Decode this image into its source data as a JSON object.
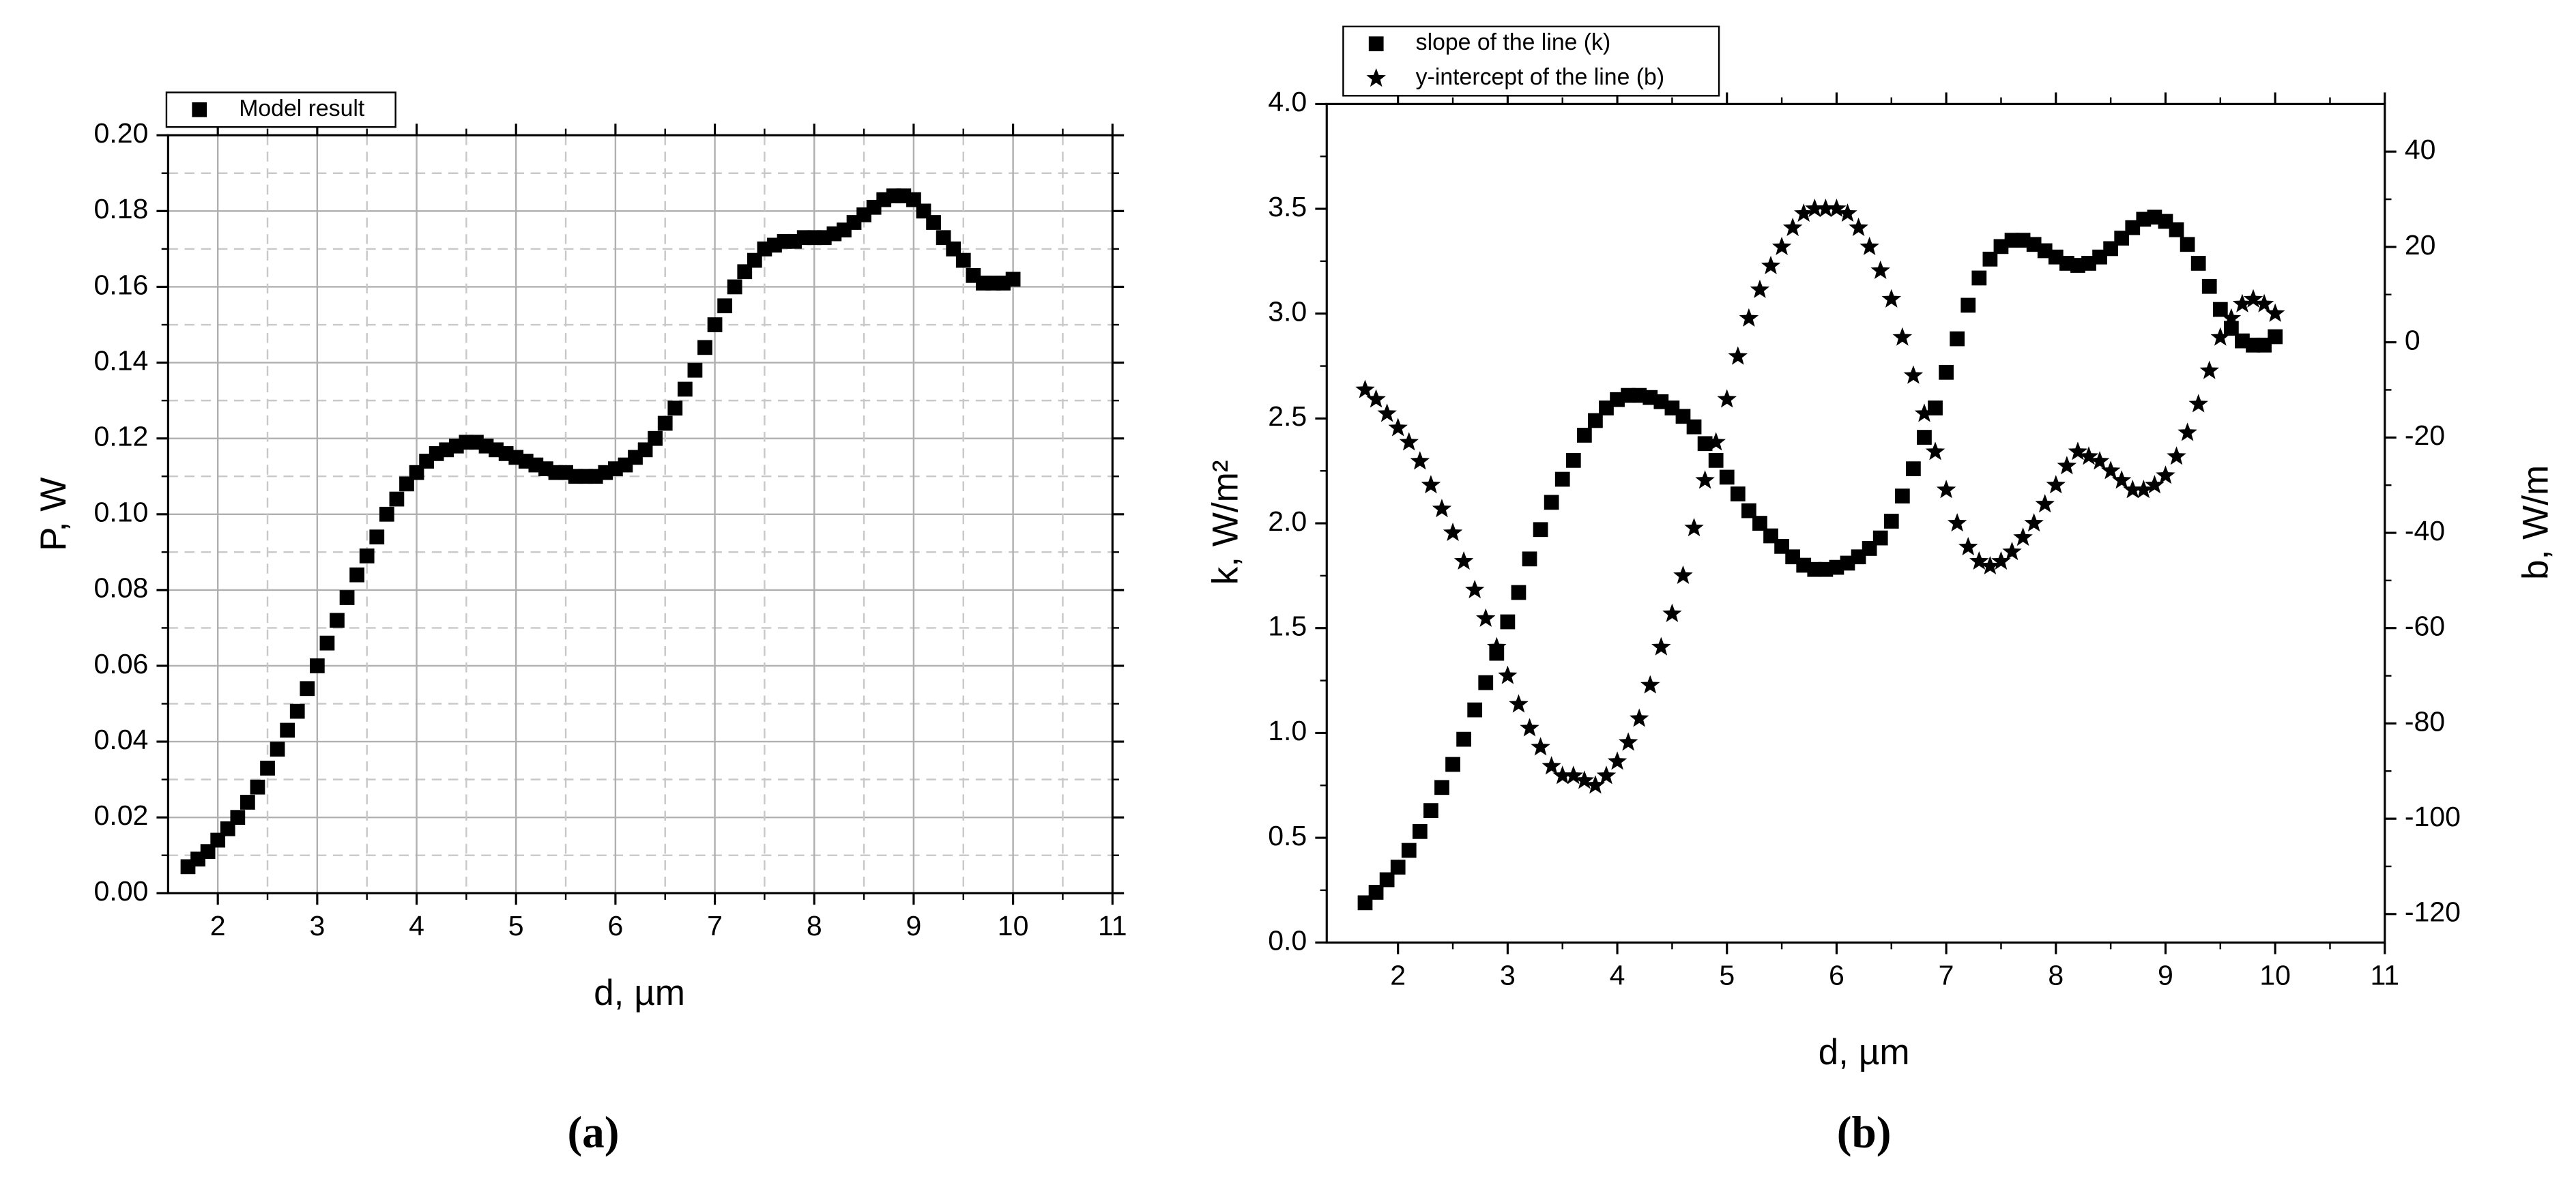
{
  "chart_data": [
    {
      "type": "scatter",
      "caption": "(a)",
      "xlabel": "d, µm",
      "ylabel": "P, W",
      "x": [
        1.7,
        1.8,
        1.9,
        2.0,
        2.1,
        2.2,
        2.3,
        2.4,
        2.5,
        2.6,
        2.7,
        2.8,
        2.9,
        3.0,
        3.1,
        3.2,
        3.3,
        3.4,
        3.5,
        3.6,
        3.7,
        3.8,
        3.9,
        4.0,
        4.1,
        4.2,
        4.3,
        4.4,
        4.5,
        4.6,
        4.7,
        4.8,
        4.9,
        5.0,
        5.1,
        5.2,
        5.3,
        5.4,
        5.5,
        5.6,
        5.7,
        5.8,
        5.9,
        6.0,
        6.1,
        6.2,
        6.3,
        6.4,
        6.5,
        6.6,
        6.7,
        6.8,
        6.9,
        7.0,
        7.1,
        7.2,
        7.3,
        7.4,
        7.5,
        7.6,
        7.7,
        7.8,
        7.9,
        8.0,
        8.1,
        8.2,
        8.3,
        8.4,
        8.5,
        8.6,
        8.7,
        8.8,
        8.9,
        9.0,
        9.1,
        9.2,
        9.3,
        9.4,
        9.5,
        9.6,
        9.7,
        9.8,
        9.9,
        10.0
      ],
      "series": [
        {
          "name": "Model result",
          "color": "#000000",
          "marker": "square",
          "values": [
            0.007,
            0.009,
            0.011,
            0.014,
            0.017,
            0.02,
            0.024,
            0.028,
            0.033,
            0.038,
            0.043,
            0.048,
            0.054,
            0.06,
            0.066,
            0.072,
            0.078,
            0.084,
            0.089,
            0.094,
            0.1,
            0.104,
            0.108,
            0.111,
            0.114,
            0.116,
            0.117,
            0.118,
            0.119,
            0.119,
            0.118,
            0.117,
            0.116,
            0.115,
            0.114,
            0.113,
            0.112,
            0.111,
            0.111,
            0.11,
            0.11,
            0.11,
            0.111,
            0.112,
            0.113,
            0.115,
            0.117,
            0.12,
            0.124,
            0.128,
            0.133,
            0.138,
            0.144,
            0.15,
            0.155,
            0.16,
            0.164,
            0.167,
            0.17,
            0.171,
            0.172,
            0.172,
            0.173,
            0.173,
            0.173,
            0.174,
            0.175,
            0.177,
            0.179,
            0.181,
            0.183,
            0.184,
            0.184,
            0.183,
            0.18,
            0.177,
            0.173,
            0.17,
            0.167,
            0.163,
            0.161,
            0.161,
            0.161,
            0.162
          ]
        }
      ],
      "xlim": [
        1.5,
        11
      ],
      "xticks": [
        2,
        3,
        4,
        5,
        6,
        7,
        8,
        9,
        10,
        11
      ],
      "ylim": [
        0,
        0.2
      ],
      "yticks": [
        {
          "value": 0,
          "label": "0.00"
        },
        0.02,
        0.04,
        0.06,
        0.08,
        {
          "value": 0.1,
          "label": "0.10"
        },
        0.12,
        0.14,
        0.16,
        0.18,
        {
          "value": 0.2,
          "label": "0.20"
        }
      ],
      "grid": true
    },
    {
      "type": "scatter",
      "caption": "(b)",
      "xlabel": "d, µm",
      "ylabel": "k, W/m²",
      "y2label": "b, W/m",
      "x": [
        1.7,
        1.8,
        1.9,
        2.0,
        2.1,
        2.2,
        2.3,
        2.4,
        2.5,
        2.6,
        2.7,
        2.8,
        2.9,
        3.0,
        3.1,
        3.2,
        3.3,
        3.4,
        3.5,
        3.6,
        3.7,
        3.8,
        3.9,
        4.0,
        4.1,
        4.2,
        4.3,
        4.4,
        4.5,
        4.6,
        4.7,
        4.8,
        4.9,
        5.0,
        5.1,
        5.2,
        5.3,
        5.4,
        5.5,
        5.6,
        5.7,
        5.8,
        5.9,
        6.0,
        6.1,
        6.2,
        6.3,
        6.4,
        6.5,
        6.6,
        6.7,
        6.8,
        6.9,
        7.0,
        7.1,
        7.2,
        7.3,
        7.4,
        7.5,
        7.6,
        7.7,
        7.8,
        7.9,
        8.0,
        8.1,
        8.2,
        8.3,
        8.4,
        8.5,
        8.6,
        8.7,
        8.8,
        8.9,
        9.0,
        9.1,
        9.2,
        9.3,
        9.4,
        9.5,
        9.6,
        9.7,
        9.8,
        9.9,
        10.0
      ],
      "series": [
        {
          "name": "slope of the line (k)",
          "color": "#000000",
          "marker": "square",
          "values": [
            0.19,
            0.24,
            0.3,
            0.36,
            0.44,
            0.53,
            0.63,
            0.74,
            0.85,
            0.97,
            1.11,
            1.24,
            1.38,
            1.53,
            1.67,
            1.83,
            1.97,
            2.1,
            2.21,
            2.3,
            2.42,
            2.49,
            2.55,
            2.59,
            2.61,
            2.61,
            2.6,
            2.58,
            2.55,
            2.51,
            2.46,
            2.38,
            2.3,
            2.22,
            2.14,
            2.06,
            2.0,
            1.94,
            1.89,
            1.84,
            1.8,
            1.78,
            1.78,
            1.79,
            1.81,
            1.84,
            1.88,
            1.93,
            2.01,
            2.13,
            2.26,
            2.41,
            2.55,
            2.72,
            2.88,
            3.04,
            3.17,
            3.26,
            3.32,
            3.35,
            3.35,
            3.33,
            3.3,
            3.27,
            3.24,
            3.23,
            3.24,
            3.27,
            3.31,
            3.36,
            3.41,
            3.45,
            3.46,
            3.44,
            3.4,
            3.33,
            3.24,
            3.13,
            3.02,
            2.93,
            2.87,
            2.85,
            2.85,
            2.89
          ]
        },
        {
          "name": "y-intercept of the line (b)",
          "color": "#000000",
          "marker": "star",
          "axis": "y2",
          "values": [
            -10,
            -12,
            -15,
            -18,
            -21,
            -25,
            -30,
            -35,
            -40,
            -46,
            -52,
            -58,
            -64,
            -70,
            -76,
            -81,
            -85,
            -89,
            -91,
            -91,
            -92,
            -93,
            -91,
            -88,
            -84,
            -79,
            -72,
            -64,
            -57,
            -49,
            -39,
            -29,
            -21,
            -12,
            -3,
            5,
            11,
            16,
            20,
            24,
            27,
            28,
            28,
            28,
            27,
            24,
            20,
            15,
            9,
            1,
            -7,
            -15,
            -23,
            -31,
            -38,
            -43,
            -46,
            -47,
            -46,
            -44,
            -41,
            -38,
            -34,
            -30,
            -26,
            -23,
            -24,
            -25,
            -27,
            -29,
            -31,
            -31,
            -30,
            -28,
            -24,
            -19,
            -13,
            -6,
            1,
            5,
            8,
            9,
            8,
            6
          ]
        }
      ],
      "xlim": [
        1.35,
        11
      ],
      "xticks": [
        2,
        3,
        4,
        5,
        6,
        7,
        8,
        9,
        10,
        11
      ],
      "ylim": [
        0,
        4
      ],
      "yticks": [
        {
          "value": 0,
          "label": "0.0"
        },
        0.5,
        {
          "value": 1,
          "label": "1.0"
        },
        1.5,
        {
          "value": 2,
          "label": "2.0"
        },
        2.5,
        {
          "value": 3,
          "label": "3.0"
        },
        3.5,
        {
          "value": 4,
          "label": "4.0"
        }
      ],
      "y2lim": [
        -126,
        50
      ],
      "y2ticks": [
        -120,
        -100,
        -80,
        -60,
        -40,
        -20,
        0,
        20,
        40
      ],
      "grid": false
    }
  ]
}
